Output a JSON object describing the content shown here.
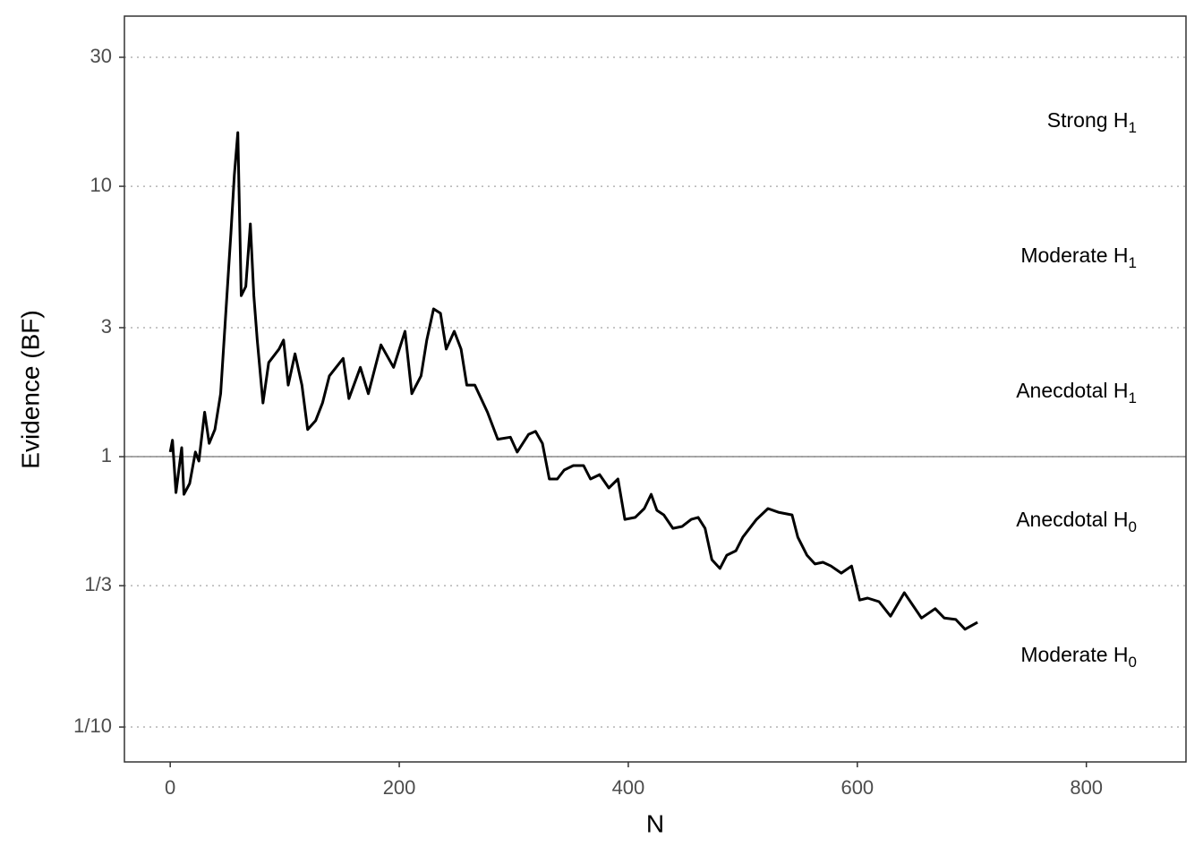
{
  "chart_data": {
    "type": "line",
    "x_label": "N",
    "y_label": "Evidence (BF)",
    "log_y": true,
    "color": "#000000",
    "xlim": [
      -40,
      887
    ],
    "ylim": [
      0.0743,
      42.6
    ],
    "xticks": [
      0,
      200,
      400,
      600,
      800
    ],
    "yticks": [
      {
        "value": 0.1,
        "label": "1/10"
      },
      {
        "value": 0.3333,
        "label": "1/3"
      },
      1,
      3,
      10,
      30
    ],
    "reference_line": 1,
    "annotations": [
      {
        "text": "Moderate H",
        "subscript": "0"
      },
      {
        "text": "Anecdotal H",
        "subscript": "0"
      },
      {
        "text": "Anecdotal H",
        "subscript": "1"
      },
      {
        "text": "Moderate H",
        "subscript": "1"
      },
      {
        "text": "Strong H",
        "subscript": "1"
      }
    ],
    "x": [
      0,
      2,
      5,
      10,
      12,
      17,
      22,
      25,
      30,
      34,
      39,
      44,
      48,
      53,
      56,
      59,
      62,
      66,
      70,
      73,
      76,
      81,
      86,
      95,
      99,
      103,
      109,
      115,
      120,
      127,
      133,
      139,
      151,
      156,
      166,
      173,
      184,
      195,
      205,
      211,
      219,
      224,
      230,
      236,
      241,
      248,
      254,
      259,
      266,
      277,
      286,
      297,
      303,
      313,
      319,
      325,
      331,
      338,
      344,
      352,
      361,
      367,
      375,
      383,
      391,
      397,
      406,
      414,
      420,
      425,
      431,
      439,
      447,
      455,
      461,
      467,
      473,
      480,
      486,
      494,
      500,
      512,
      522,
      531,
      543,
      548,
      556,
      563,
      570,
      577,
      586,
      595,
      602,
      609,
      619,
      629,
      641,
      648,
      656,
      668,
      676,
      686,
      694,
      705
    ],
    "values": [
      1.04,
      1.15,
      0.737,
      1.08,
      0.726,
      0.796,
      1.04,
      0.963,
      1.46,
      1.12,
      1.26,
      1.71,
      3.14,
      6.73,
      11.0,
      15.8,
      3.94,
      4.26,
      7.26,
      3.94,
      2.7,
      1.58,
      2.23,
      2.5,
      2.7,
      1.84,
      2.4,
      1.84,
      1.26,
      1.36,
      1.58,
      1.99,
      2.31,
      1.64,
      2.14,
      1.71,
      2.59,
      2.14,
      2.91,
      1.71,
      1.99,
      2.7,
      3.52,
      3.39,
      2.5,
      2.91,
      2.5,
      1.84,
      1.84,
      1.46,
      1.16,
      1.18,
      1.04,
      1.21,
      1.24,
      1.12,
      0.827,
      0.827,
      0.892,
      0.927,
      0.927,
      0.827,
      0.858,
      0.766,
      0.827,
      0.586,
      0.596,
      0.643,
      0.726,
      0.633,
      0.609,
      0.543,
      0.552,
      0.586,
      0.596,
      0.543,
      0.416,
      0.386,
      0.432,
      0.449,
      0.504,
      0.586,
      0.643,
      0.623,
      0.609,
      0.504,
      0.432,
      0.401,
      0.407,
      0.394,
      0.371,
      0.394,
      0.295,
      0.3,
      0.291,
      0.257,
      0.314,
      0.284,
      0.253,
      0.274,
      0.253,
      0.25,
      0.23,
      0.244
    ]
  }
}
